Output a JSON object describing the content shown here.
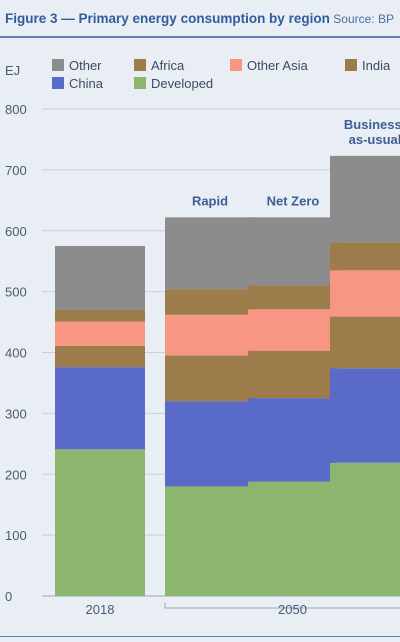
{
  "header": {
    "title": "Figure 3 — Primary energy consumption by region",
    "source": "Source: BP"
  },
  "chart_data": {
    "type": "bar",
    "stacked": true,
    "title": "Figure 3 — Primary energy consumption by region",
    "ylabel": "EJ",
    "ylim": [
      0,
      800
    ],
    "yticks": [
      0,
      100,
      200,
      300,
      400,
      500,
      600,
      700,
      800
    ],
    "grid": true,
    "legend_position": "top",
    "categories": [
      "2018",
      "Rapid",
      "Net Zero",
      "Business-as-usual"
    ],
    "bar_labels": [
      "",
      "Rapid",
      "Net Zero",
      "Business-\nas-usual"
    ],
    "x_groups": [
      {
        "label": "2018",
        "bars": [
          0
        ]
      },
      {
        "label": "2050",
        "bars": [
          1,
          2,
          3
        ]
      }
    ],
    "series": [
      {
        "name": "Developed",
        "color": "#8cb56e",
        "values": [
          241,
          180,
          188,
          219
        ]
      },
      {
        "name": "China",
        "color": "#5a6ac8",
        "values": [
          135,
          140,
          137,
          155
        ]
      },
      {
        "name": "India",
        "color": "#9c7c4b",
        "values": [
          35,
          75,
          78,
          85
        ]
      },
      {
        "name": "Other Asia",
        "color": "#f89684",
        "values": [
          40,
          67,
          68,
          76
        ]
      },
      {
        "name": "Africa",
        "color": "#9c7c4b",
        "values": [
          19,
          42,
          39,
          46
        ]
      },
      {
        "name": "Other",
        "color": "#8c8c8c",
        "values": [
          105,
          118,
          112,
          142
        ]
      }
    ],
    "legend": [
      {
        "name": "Other",
        "color": "#8c8c8c"
      },
      {
        "name": "Africa",
        "color": "#9c7c4b"
      },
      {
        "name": "Other Asia",
        "color": "#f89684"
      },
      {
        "name": "India",
        "color": "#9c7c4b"
      },
      {
        "name": "China",
        "color": "#5a6ac8"
      },
      {
        "name": "Developed",
        "color": "#8cb56e"
      }
    ]
  }
}
